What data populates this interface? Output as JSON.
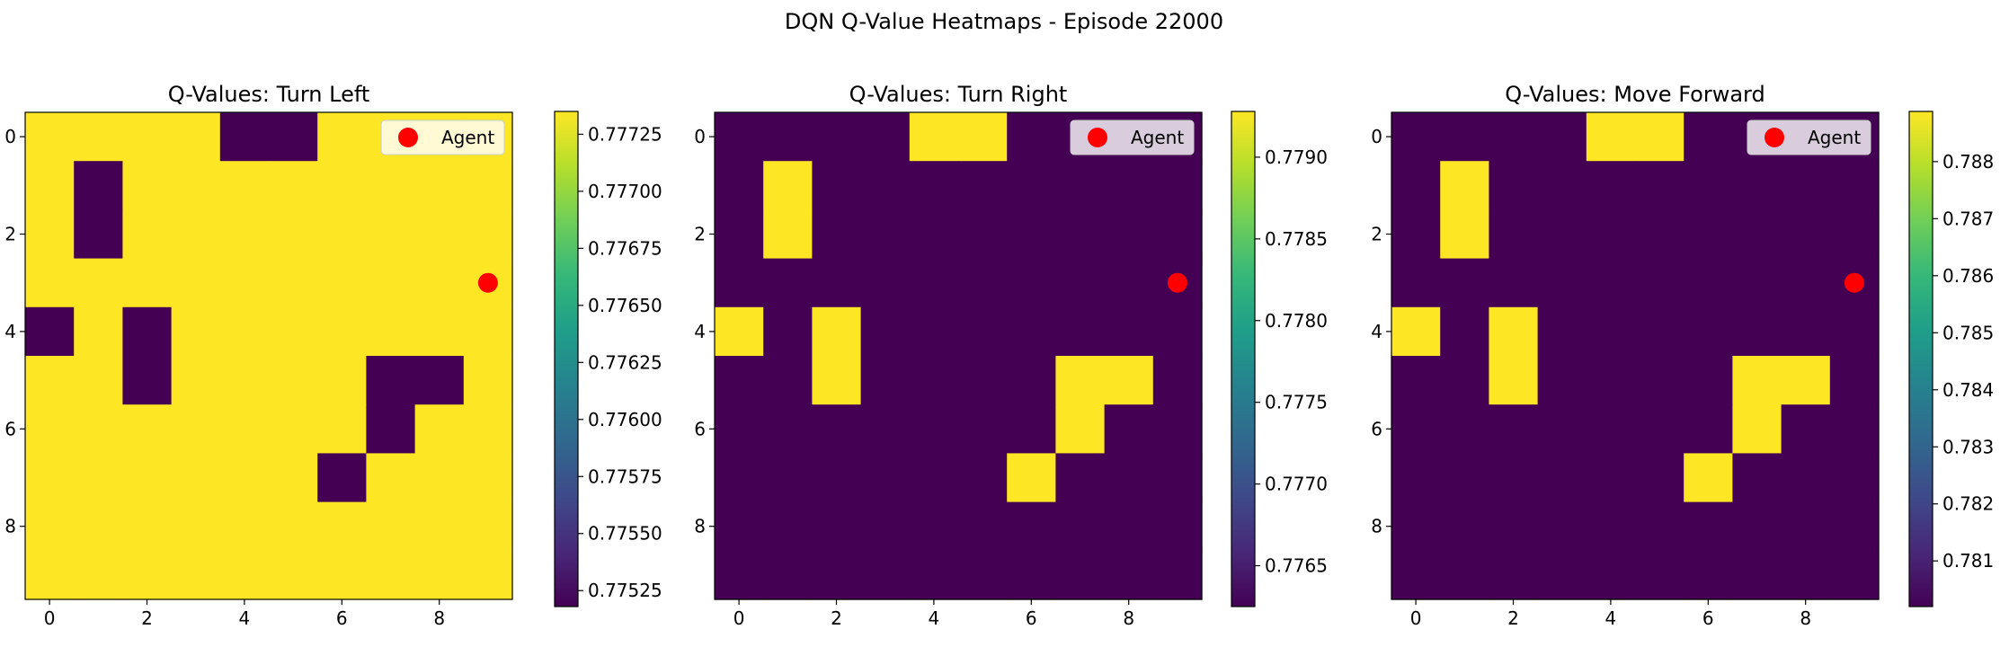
{
  "figure": {
    "suptitle": "DQN Q-Value Heatmaps - Episode 22000"
  },
  "palette": {
    "high": "#fde725",
    "low": "#440154",
    "agent": "#ff0000",
    "viridis": [
      "#440154",
      "#482878",
      "#3e4a89",
      "#31688e",
      "#26828e",
      "#1f9e89",
      "#35b779",
      "#6ece58",
      "#b5de2b",
      "#fde725"
    ]
  },
  "chart_data": [
    {
      "type": "heatmap",
      "title": "Q-Values: Turn Left",
      "grid_size": [
        10,
        10
      ],
      "x_ticks": [
        0,
        2,
        4,
        6,
        8
      ],
      "y_ticks": [
        0,
        2,
        4,
        6,
        8
      ],
      "high_value": 0.77735,
      "low_value": 0.77518,
      "low_cells": [
        [
          0,
          4
        ],
        [
          0,
          5
        ],
        [
          1,
          1
        ],
        [
          2,
          1
        ],
        [
          4,
          0
        ],
        [
          4,
          2
        ],
        [
          5,
          2
        ],
        [
          5,
          7
        ],
        [
          5,
          8
        ],
        [
          6,
          7
        ],
        [
          7,
          6
        ]
      ],
      "agent": {
        "row": 3,
        "col": 9,
        "label": "Agent"
      },
      "legend_placement": "upper right",
      "colorbar": {
        "range": [
          0.77518,
          0.77735
        ],
        "ticks": [
          0.77525,
          0.7755,
          0.77575,
          0.776,
          0.77625,
          0.7765,
          0.77675,
          0.777,
          0.77725
        ],
        "tick_labels": [
          "0.77525",
          "0.77550",
          "0.77575",
          "0.77600",
          "0.77625",
          "0.77650",
          "0.77675",
          "0.77700",
          "0.77725"
        ]
      }
    },
    {
      "type": "heatmap",
      "title": "Q-Values: Turn Right",
      "grid_size": [
        10,
        10
      ],
      "x_ticks": [
        0,
        2,
        4,
        6,
        8
      ],
      "y_ticks": [
        0,
        2,
        4,
        6,
        8
      ],
      "high_value": 0.77928,
      "low_value": 0.77625,
      "high_cells": [
        [
          0,
          4
        ],
        [
          0,
          5
        ],
        [
          1,
          1
        ],
        [
          2,
          1
        ],
        [
          4,
          0
        ],
        [
          4,
          2
        ],
        [
          5,
          2
        ],
        [
          5,
          7
        ],
        [
          5,
          8
        ],
        [
          6,
          7
        ],
        [
          7,
          6
        ]
      ],
      "agent": {
        "row": 3,
        "col": 9,
        "label": "Agent"
      },
      "legend_placement": "upper right",
      "colorbar": {
        "range": [
          0.77625,
          0.77928
        ],
        "ticks": [
          0.7765,
          0.777,
          0.7775,
          0.778,
          0.7785,
          0.779
        ],
        "tick_labels": [
          "0.7765",
          "0.7770",
          "0.7775",
          "0.7780",
          "0.7785",
          "0.7790"
        ]
      }
    },
    {
      "type": "heatmap",
      "title": "Q-Values: Move Forward",
      "grid_size": [
        10,
        10
      ],
      "x_ticks": [
        0,
        2,
        4,
        6,
        8
      ],
      "y_ticks": [
        0,
        2,
        4,
        6,
        8
      ],
      "high_value": 0.78888,
      "low_value": 0.7802,
      "high_cells": [
        [
          0,
          4
        ],
        [
          0,
          5
        ],
        [
          1,
          1
        ],
        [
          2,
          1
        ],
        [
          4,
          0
        ],
        [
          4,
          2
        ],
        [
          5,
          2
        ],
        [
          5,
          7
        ],
        [
          5,
          8
        ],
        [
          6,
          7
        ],
        [
          7,
          6
        ]
      ],
      "agent": {
        "row": 3,
        "col": 9,
        "label": "Agent"
      },
      "legend_placement": "upper right",
      "colorbar": {
        "range": [
          0.7802,
          0.78888
        ],
        "ticks": [
          0.781,
          0.782,
          0.783,
          0.784,
          0.785,
          0.786,
          0.787,
          0.788
        ],
        "tick_labels": [
          "0.781",
          "0.782",
          "0.783",
          "0.784",
          "0.785",
          "0.786",
          "0.787",
          "0.788"
        ]
      }
    }
  ]
}
